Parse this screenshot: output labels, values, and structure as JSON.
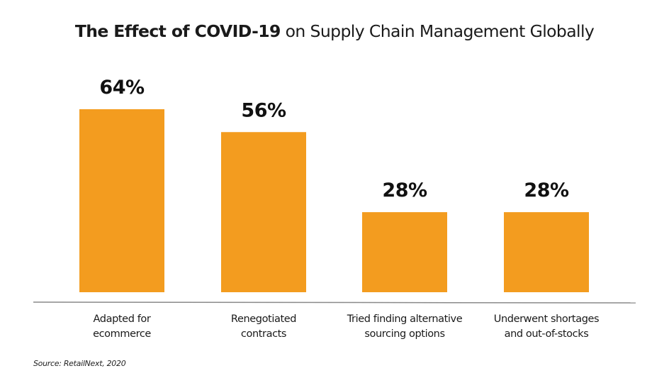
{
  "chart_data": {
    "type": "bar",
    "title_bold": "The Effect of COVID-19",
    "title_rest": " on Supply Chain Management Globally",
    "categories": [
      [
        "Adapted for",
        "ecommerce"
      ],
      [
        "Renegotiated",
        "contracts"
      ],
      [
        "Tried finding alternative",
        "sourcing options"
      ],
      [
        "Underwent shortages",
        "and out-of-stocks"
      ]
    ],
    "values": [
      64,
      56,
      28,
      28
    ],
    "value_labels": [
      "64%",
      "56%",
      "28%",
      "28%"
    ],
    "unit": "%",
    "xlabel": "",
    "ylabel": "",
    "ylim": [
      0,
      100
    ],
    "grid": false,
    "legend": "none",
    "bar_color": "#F39C1F",
    "source": "Source: RetailNext, 2020"
  }
}
